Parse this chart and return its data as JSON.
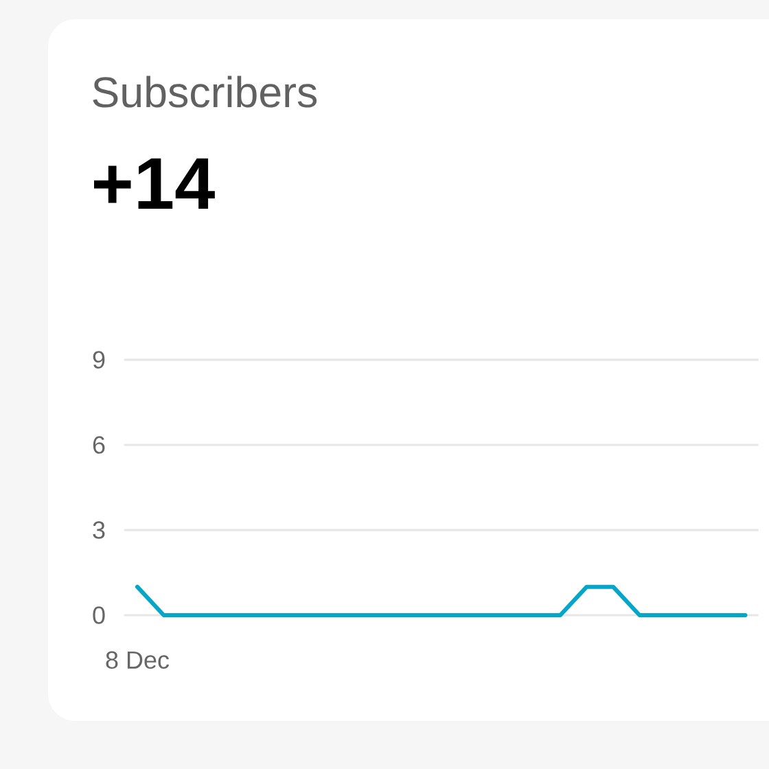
{
  "chart_data": {
    "type": "line",
    "title": "Subscribers",
    "subtitle": "+14",
    "categories": [
      "8 Dec",
      null,
      null,
      null,
      null,
      null,
      null,
      null,
      null,
      null,
      null,
      null,
      null,
      null,
      null,
      null,
      null,
      null,
      null,
      null,
      null,
      null,
      null,
      null
    ],
    "values": [
      1,
      0,
      0,
      0,
      0,
      0,
      0,
      0,
      0,
      0,
      0,
      0,
      0,
      0,
      0,
      0,
      0,
      1,
      1,
      0,
      0,
      0,
      0,
      0
    ],
    "color": "#06a6c8",
    "ylim": [
      0,
      9
    ],
    "yticks": [
      0,
      3,
      6,
      9
    ],
    "grid": "y"
  }
}
